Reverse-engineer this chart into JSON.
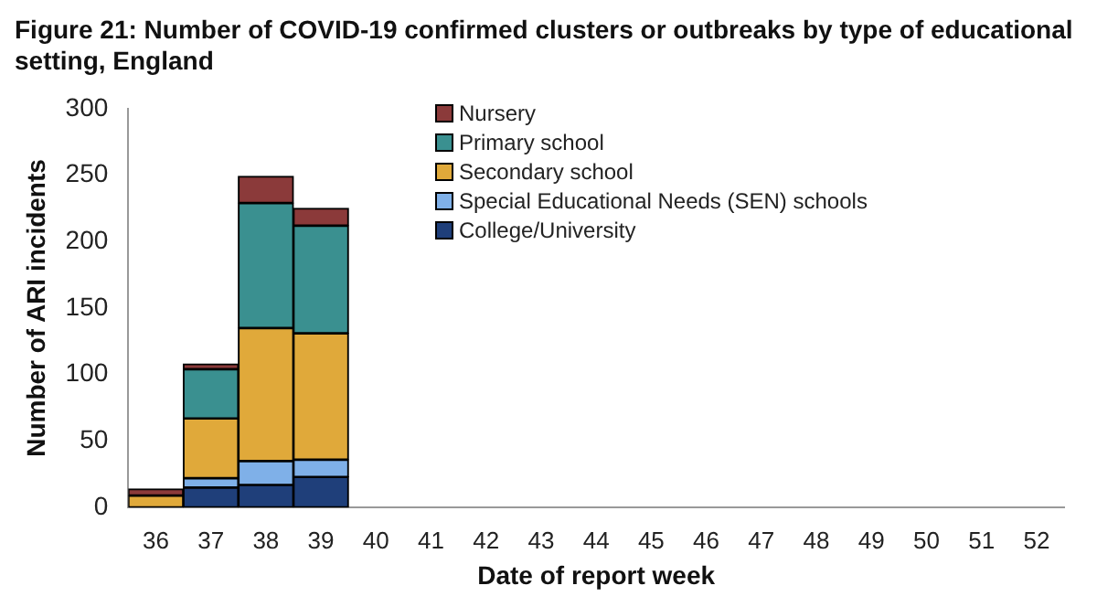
{
  "chart_data": {
    "type": "bar",
    "title": "Figure 21: Number of COVID-19 confirmed clusters or outbreaks by type of educational setting, England",
    "xlabel": "Date of report week",
    "ylabel": "Number of ARI incidents",
    "categories": [
      "36",
      "37",
      "38",
      "39",
      "40",
      "41",
      "42",
      "43",
      "44",
      "45",
      "46",
      "47",
      "48",
      "49",
      "50",
      "51",
      "52"
    ],
    "stacked": true,
    "ylim": [
      0,
      300
    ],
    "yticks": [
      0,
      50,
      100,
      150,
      200,
      250,
      300
    ],
    "grid": false,
    "legend": "top",
    "series": [
      {
        "name": "College/University",
        "color": "#1f3f7a",
        "values": [
          0,
          15,
          17,
          23,
          0,
          0,
          0,
          0,
          0,
          0,
          0,
          0,
          0,
          0,
          0,
          0,
          0
        ]
      },
      {
        "name": "Special Educational Needs (SEN) schools",
        "color": "#7fb0e8",
        "values": [
          0,
          7,
          18,
          13,
          0,
          0,
          0,
          0,
          0,
          0,
          0,
          0,
          0,
          0,
          0,
          0,
          0
        ]
      },
      {
        "name": "Secondary school",
        "color": "#e0a93a",
        "values": [
          9,
          45,
          100,
          95,
          0,
          0,
          0,
          0,
          0,
          0,
          0,
          0,
          0,
          0,
          0,
          0,
          0
        ]
      },
      {
        "name": "Primary school",
        "color": "#3a9090",
        "values": [
          0,
          37,
          94,
          81,
          0,
          0,
          0,
          0,
          0,
          0,
          0,
          0,
          0,
          0,
          0,
          0,
          0
        ]
      },
      {
        "name": "Nursery",
        "color": "#8b3a3a",
        "values": [
          5,
          4,
          20,
          13,
          0,
          0,
          0,
          0,
          0,
          0,
          0,
          0,
          0,
          0,
          0,
          0,
          0
        ]
      }
    ]
  }
}
